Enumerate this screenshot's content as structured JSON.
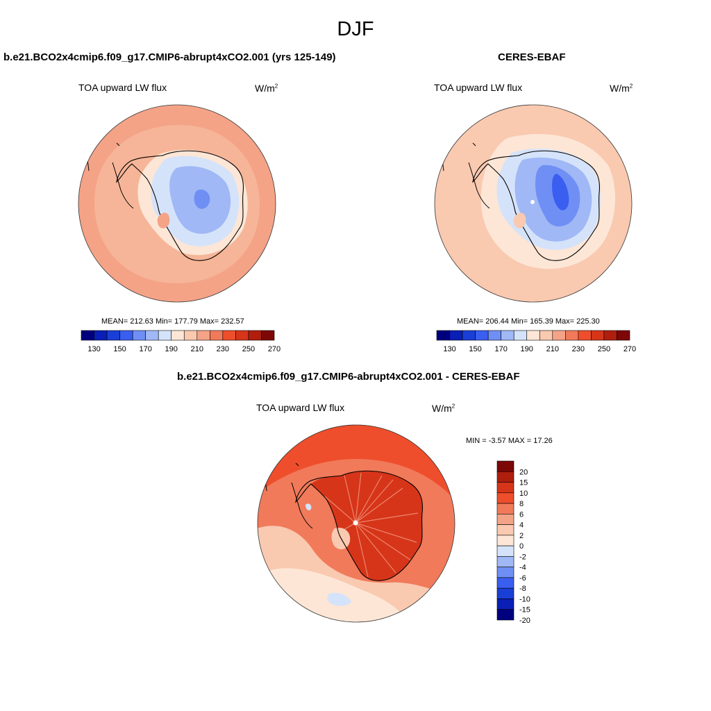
{
  "figure": {
    "season": "DJF"
  },
  "panels": [
    {
      "id": "model",
      "title": "b.e21.BCO2x4cmip6.f09_g17.CMIP6-abrupt4xCO2.001 (yrs 125-149)",
      "variable": "TOA upward LW flux",
      "units_base": "W/m",
      "units_exp": "2",
      "stats": "MEAN= 212.63  Min= 177.79  Max= 232.57",
      "mean": 212.63,
      "min": 177.79,
      "max": 232.57
    },
    {
      "id": "obs",
      "title": "CERES-EBAF",
      "variable": "TOA upward LW flux",
      "units_base": "W/m",
      "units_exp": "2",
      "stats": "MEAN= 206.44  Min= 165.39  Max= 225.30",
      "mean": 206.44,
      "min": 165.39,
      "max": 225.3
    },
    {
      "id": "diff",
      "title": "b.e21.BCO2x4cmip6.f09_g17.CMIP6-abrupt4xCO2.001 - CERES-EBAF",
      "variable": "TOA upward LW flux",
      "units_base": "W/m",
      "units_exp": "2",
      "stats": "MIN =  -3.57 MAX =  17.26",
      "min": -3.57,
      "max": 17.26
    }
  ],
  "colorbars": {
    "absolute": {
      "colors": [
        "#00007f",
        "#0a1fb5",
        "#1a3fd6",
        "#3a5ef0",
        "#6f8ff5",
        "#a0b8f5",
        "#d5e3fa",
        "#fde6d6",
        "#f9c9b0",
        "#f4a387",
        "#f07a5a",
        "#ee4e2c",
        "#d6351a",
        "#b01e0e",
        "#7d0707"
      ],
      "labels": [
        "130",
        "150",
        "170",
        "190",
        "210",
        "230",
        "250",
        "270"
      ]
    },
    "difference": {
      "colors": [
        "#7d0707",
        "#b01e0e",
        "#d6351a",
        "#ee4e2c",
        "#f07a5a",
        "#f4a387",
        "#f9c9b0",
        "#fde6d6",
        "#d5e3fa",
        "#a0b8f5",
        "#6f8ff5",
        "#3a5ef0",
        "#1a3fd6",
        "#0a1fb5",
        "#00007f"
      ],
      "labels": [
        "20",
        "15",
        "10",
        "8",
        "6",
        "4",
        "2",
        "0",
        "-2",
        "-4",
        "-6",
        "-8",
        "-10",
        "-15",
        "-20"
      ]
    }
  },
  "map_colors": {
    "ocean_model": "#f6b598",
    "ring_model": "#f4a387",
    "ice_edge": "#fde6d6",
    "ice_low": "#d5e3fa",
    "ice_mid": "#a0b8f5",
    "ice_deep": "#6f8ff5",
    "ice_core": "#3a5ef0",
    "ocean_obs": "#f9c9b0",
    "diff_base": "#f07a5a",
    "diff_strong": "#ee4e2c",
    "diff_deep": "#d6351a",
    "diff_weak": "#f9c9b0",
    "diff_neutral": "#fde6d6",
    "diff_negative": "#d5e3fa",
    "coast": "#000000"
  }
}
